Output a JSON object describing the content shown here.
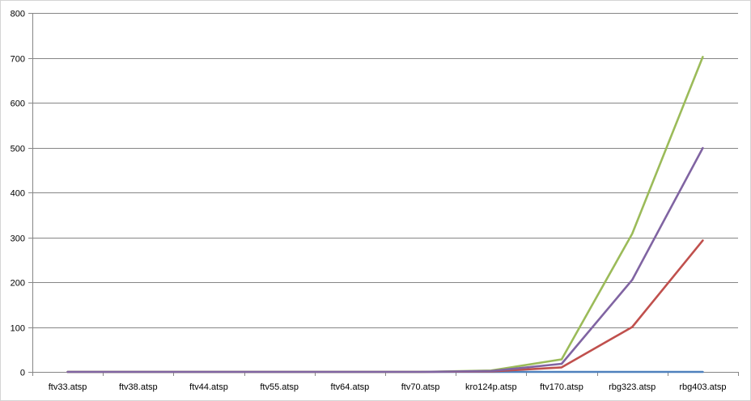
{
  "chart_data": {
    "type": "line",
    "title": "",
    "xlabel": "",
    "ylabel": "",
    "categories": [
      "ftv33.atsp",
      "ftv38.atsp",
      "ftv44.atsp",
      "ftv55.atsp",
      "ftv64.atsp",
      "ftv70.atsp",
      "kro124p.atsp",
      "ftv170.atsp",
      "rbg323.atsp",
      "rbg403.atsp"
    ],
    "ylim": [
      0,
      800
    ],
    "yticks": [
      0,
      100,
      200,
      300,
      400,
      500,
      600,
      700,
      800
    ],
    "grid": true,
    "legend": "none",
    "series": [
      {
        "color": "#4f81bd",
        "values": [
          0,
          0,
          0,
          0,
          0,
          0,
          0,
          0,
          0,
          0
        ]
      },
      {
        "color": "#c0504d",
        "values": [
          0,
          0,
          0,
          0,
          0,
          0,
          1,
          10,
          100,
          293
        ]
      },
      {
        "color": "#9bbb59",
        "values": [
          0,
          0,
          0,
          0,
          0,
          0,
          3,
          28,
          308,
          702
        ]
      },
      {
        "color": "#8064a2",
        "values": [
          0,
          0,
          0,
          0,
          0,
          0,
          2,
          18,
          205,
          499
        ]
      }
    ]
  }
}
